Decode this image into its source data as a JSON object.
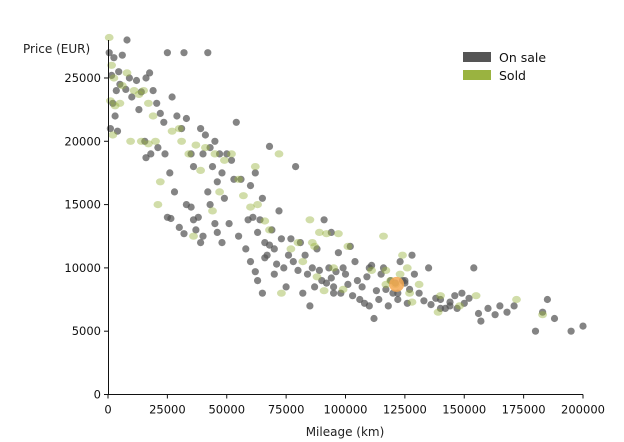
{
  "chart_data": {
    "type": "scatter",
    "xlabel": "Mileage (km)",
    "ylabel": "Price (EUR)",
    "xlim": [
      0,
      200000
    ],
    "ylim": [
      0,
      28000
    ],
    "x_ticks": [
      "0",
      "25000",
      "50000",
      "75000",
      "100000",
      "125000",
      "150000",
      "175000",
      "200000"
    ],
    "y_ticks": [
      "0",
      "5000",
      "10000",
      "15000",
      "20000",
      "25000"
    ],
    "grid": false,
    "legend_position": "top-right",
    "series": [
      {
        "name": "On sale",
        "color": "#555555",
        "points": [
          [
            500,
            27000
          ],
          [
            1500,
            25200
          ],
          [
            2500,
            26600
          ],
          [
            3500,
            24000
          ],
          [
            4500,
            25500
          ],
          [
            6000,
            26800
          ],
          [
            7500,
            24100
          ],
          [
            9000,
            25000
          ],
          [
            8000,
            28000
          ],
          [
            2000,
            23000
          ],
          [
            3000,
            22000
          ],
          [
            5000,
            24500
          ],
          [
            1000,
            21000
          ],
          [
            4000,
            20800
          ],
          [
            10000,
            23500
          ],
          [
            12000,
            24800
          ],
          [
            14000,
            23900
          ],
          [
            16000,
            25000
          ],
          [
            17500,
            25400
          ],
          [
            19000,
            24000
          ],
          [
            20500,
            23000
          ],
          [
            22000,
            22200
          ],
          [
            13000,
            22500
          ],
          [
            15500,
            20000
          ],
          [
            18000,
            19000
          ],
          [
            16000,
            18700
          ],
          [
            21000,
            19500
          ],
          [
            23500,
            21500
          ],
          [
            25000,
            27000
          ],
          [
            29000,
            22000
          ],
          [
            31000,
            21000
          ],
          [
            33000,
            21800
          ],
          [
            32000,
            27000
          ],
          [
            36000,
            18000
          ],
          [
            39000,
            21000
          ],
          [
            40000,
            19000
          ],
          [
            41000,
            20500
          ],
          [
            42000,
            27000
          ],
          [
            43000,
            19500
          ],
          [
            45000,
            20000
          ],
          [
            47000,
            19000
          ],
          [
            48000,
            17500
          ],
          [
            35000,
            19000
          ],
          [
            44000,
            18000
          ],
          [
            46000,
            16800
          ],
          [
            50000,
            19000
          ],
          [
            52000,
            18500
          ],
          [
            54000,
            21500
          ],
          [
            53000,
            17000
          ],
          [
            49000,
            15500
          ],
          [
            51000,
            13500
          ],
          [
            56000,
            17000
          ],
          [
            55000,
            12500
          ],
          [
            58000,
            11500
          ],
          [
            59000,
            13800
          ],
          [
            27000,
            23500
          ],
          [
            26000,
            17500
          ],
          [
            28000,
            16000
          ],
          [
            24000,
            19000
          ],
          [
            33000,
            15000
          ],
          [
            35000,
            14800
          ],
          [
            37000,
            13000
          ],
          [
            38000,
            14000
          ],
          [
            40000,
            12500
          ],
          [
            42000,
            16000
          ],
          [
            43000,
            15000
          ],
          [
            45000,
            13500
          ],
          [
            46000,
            12800
          ],
          [
            48000,
            12000
          ],
          [
            25000,
            14000
          ],
          [
            26500,
            13900
          ],
          [
            30000,
            13200
          ],
          [
            32000,
            12700
          ],
          [
            36000,
            13800
          ],
          [
            39000,
            12000
          ],
          [
            60000,
            16500
          ],
          [
            61000,
            14000
          ],
          [
            62000,
            17500
          ],
          [
            63000,
            12800
          ],
          [
            64000,
            13800
          ],
          [
            65000,
            15500
          ],
          [
            66000,
            12000
          ],
          [
            67000,
            11000
          ],
          [
            68000,
            19600
          ],
          [
            69000,
            13000
          ],
          [
            70000,
            11500
          ],
          [
            71000,
            10300
          ],
          [
            72000,
            14500
          ],
          [
            73000,
            12300
          ],
          [
            60000,
            10500
          ],
          [
            62000,
            9700
          ],
          [
            63000,
            9000
          ],
          [
            65000,
            8000
          ],
          [
            66000,
            10800
          ],
          [
            68000,
            11800
          ],
          [
            70000,
            9500
          ],
          [
            74000,
            10000
          ],
          [
            75000,
            8500
          ],
          [
            76000,
            11000
          ],
          [
            77000,
            12300
          ],
          [
            78000,
            10500
          ],
          [
            79000,
            18000
          ],
          [
            80000,
            9800
          ],
          [
            81000,
            12000
          ],
          [
            82000,
            8000
          ],
          [
            83000,
            11000
          ],
          [
            84000,
            9500
          ],
          [
            85000,
            7000
          ],
          [
            86000,
            10000
          ],
          [
            87000,
            8500
          ],
          [
            88000,
            11500
          ],
          [
            89000,
            9800
          ],
          [
            90000,
            9000
          ],
          [
            91000,
            13800
          ],
          [
            92000,
            8800
          ],
          [
            93000,
            10000
          ],
          [
            94000,
            12800
          ],
          [
            95000,
            8500
          ],
          [
            96000,
            9700
          ],
          [
            97000,
            11200
          ],
          [
            98000,
            8000
          ],
          [
            99000,
            10000
          ],
          [
            100000,
            9500
          ],
          [
            101000,
            8700
          ],
          [
            102000,
            11700
          ],
          [
            103000,
            7800
          ],
          [
            104000,
            10500
          ],
          [
            105000,
            9000
          ],
          [
            106000,
            7500
          ],
          [
            107000,
            8500
          ],
          [
            108000,
            7200
          ],
          [
            109000,
            9300
          ],
          [
            110000,
            7000
          ],
          [
            111000,
            10200
          ],
          [
            112000,
            6000
          ],
          [
            113000,
            8200
          ],
          [
            114000,
            7500
          ],
          [
            115000,
            9500
          ],
          [
            116000,
            10000
          ],
          [
            117000,
            8300
          ],
          [
            118000,
            7000
          ],
          [
            119000,
            9000
          ],
          [
            120000,
            8000
          ],
          [
            121000,
            8800
          ],
          [
            122000,
            7500
          ],
          [
            123000,
            10500
          ],
          [
            124000,
            9000
          ],
          [
            125000,
            8800
          ],
          [
            126000,
            7200
          ],
          [
            127000,
            8300
          ],
          [
            128000,
            11000
          ],
          [
            129000,
            9500
          ],
          [
            131000,
            8000
          ],
          [
            133000,
            7400
          ],
          [
            135000,
            10000
          ],
          [
            136000,
            7100
          ],
          [
            138000,
            7600
          ],
          [
            140000,
            7500
          ],
          [
            142000,
            6800
          ],
          [
            144000,
            7300
          ],
          [
            146000,
            7800
          ],
          [
            147000,
            6800
          ],
          [
            149000,
            8000
          ],
          [
            150000,
            7200
          ],
          [
            152000,
            7600
          ],
          [
            154000,
            10000
          ],
          [
            156000,
            6400
          ],
          [
            157000,
            5800
          ],
          [
            160000,
            6800
          ],
          [
            163000,
            6300
          ],
          [
            165000,
            7000
          ],
          [
            168000,
            6500
          ],
          [
            171000,
            7000
          ],
          [
            180000,
            5000
          ],
          [
            183000,
            6500
          ],
          [
            185000,
            7500
          ],
          [
            188000,
            6000
          ],
          [
            195000,
            5000
          ],
          [
            200000,
            5400
          ],
          [
            94000,
            9200
          ],
          [
            95000,
            8000
          ],
          [
            110000,
            10000
          ],
          [
            122000,
            8000
          ],
          [
            125000,
            9000
          ],
          [
            140000,
            6800
          ],
          [
            144000,
            7000
          ]
        ]
      },
      {
        "name": "Sold",
        "color": "#9ab340",
        "points": [
          [
            500,
            28200
          ],
          [
            1500,
            26000
          ],
          [
            2500,
            25000
          ],
          [
            1000,
            23200
          ],
          [
            3000,
            22800
          ],
          [
            2000,
            20500
          ],
          [
            5000,
            23000
          ],
          [
            6000,
            24400
          ],
          [
            8000,
            25400
          ],
          [
            11000,
            24000
          ],
          [
            13000,
            23700
          ],
          [
            15000,
            24000
          ],
          [
            17000,
            23000
          ],
          [
            19000,
            22000
          ],
          [
            9500,
            20000
          ],
          [
            14000,
            20000
          ],
          [
            17000,
            19800
          ],
          [
            20000,
            20000
          ],
          [
            22000,
            16800
          ],
          [
            21000,
            15000
          ],
          [
            27000,
            20800
          ],
          [
            30000,
            21000
          ],
          [
            31000,
            20000
          ],
          [
            34000,
            19000
          ],
          [
            36000,
            12500
          ],
          [
            37000,
            19700
          ],
          [
            39000,
            17700
          ],
          [
            41000,
            19500
          ],
          [
            44000,
            14500
          ],
          [
            45000,
            19000
          ],
          [
            47000,
            16000
          ],
          [
            49000,
            18500
          ],
          [
            52000,
            19000
          ],
          [
            55000,
            17000
          ],
          [
            57000,
            15700
          ],
          [
            60000,
            14800
          ],
          [
            62000,
            18000
          ],
          [
            63000,
            15000
          ],
          [
            66000,
            13700
          ],
          [
            68000,
            13000
          ],
          [
            72000,
            19000
          ],
          [
            77000,
            11500
          ],
          [
            80000,
            12000
          ],
          [
            82000,
            10500
          ],
          [
            85000,
            13800
          ],
          [
            86000,
            12000
          ],
          [
            87000,
            11700
          ],
          [
            88000,
            9300
          ],
          [
            89000,
            12800
          ],
          [
            92000,
            12700
          ],
          [
            95000,
            10000
          ],
          [
            97000,
            12700
          ],
          [
            99000,
            8300
          ],
          [
            101000,
            11700
          ],
          [
            111000,
            9800
          ],
          [
            116000,
            12500
          ],
          [
            117000,
            9800
          ],
          [
            119000,
            9000
          ],
          [
            121000,
            8700
          ],
          [
            123000,
            9500
          ],
          [
            124000,
            11000
          ],
          [
            126000,
            10000
          ],
          [
            127000,
            8000
          ],
          [
            128000,
            7300
          ],
          [
            131000,
            8700
          ],
          [
            139000,
            6500
          ],
          [
            140000,
            7800
          ],
          [
            148000,
            7000
          ],
          [
            155000,
            7800
          ],
          [
            172000,
            7500
          ],
          [
            183000,
            6300
          ],
          [
            73000,
            8000
          ],
          [
            91000,
            8200
          ],
          [
            117000,
            8700
          ]
        ]
      },
      {
        "name": "",
        "color": "#f4a851",
        "points": [
          [
            121500,
            8700
          ]
        ]
      }
    ]
  }
}
